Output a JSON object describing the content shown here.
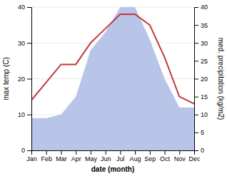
{
  "chart_data": {
    "type": "line",
    "categories": [
      "Jan",
      "Feb",
      "Mar",
      "Apr",
      "May",
      "Jun",
      "Jul",
      "Aug",
      "Sep",
      "Oct",
      "Nov",
      "Dec"
    ],
    "xlabel": "date (month)",
    "ylabel": "max temp (C)",
    "y2label": "med. precipitation (kg/m2)",
    "ylim": [
      0,
      40
    ],
    "yticks": [
      0,
      10,
      20,
      30,
      40
    ],
    "y2lim": [
      0,
      40
    ],
    "y2ticks": [
      0,
      5,
      10,
      15,
      20,
      25,
      30,
      35,
      40
    ],
    "grid": true,
    "series": [
      {
        "type": "area",
        "axis": "y2",
        "color": "#b8c5e8",
        "values": [
          9,
          9,
          10,
          15,
          28,
          33,
          40,
          40,
          31,
          20,
          12,
          12
        ]
      },
      {
        "type": "line",
        "color": "#c0393b",
        "values": [
          14,
          19,
          24,
          24,
          30,
          34,
          38,
          38,
          35,
          26,
          15,
          13
        ]
      }
    ]
  }
}
